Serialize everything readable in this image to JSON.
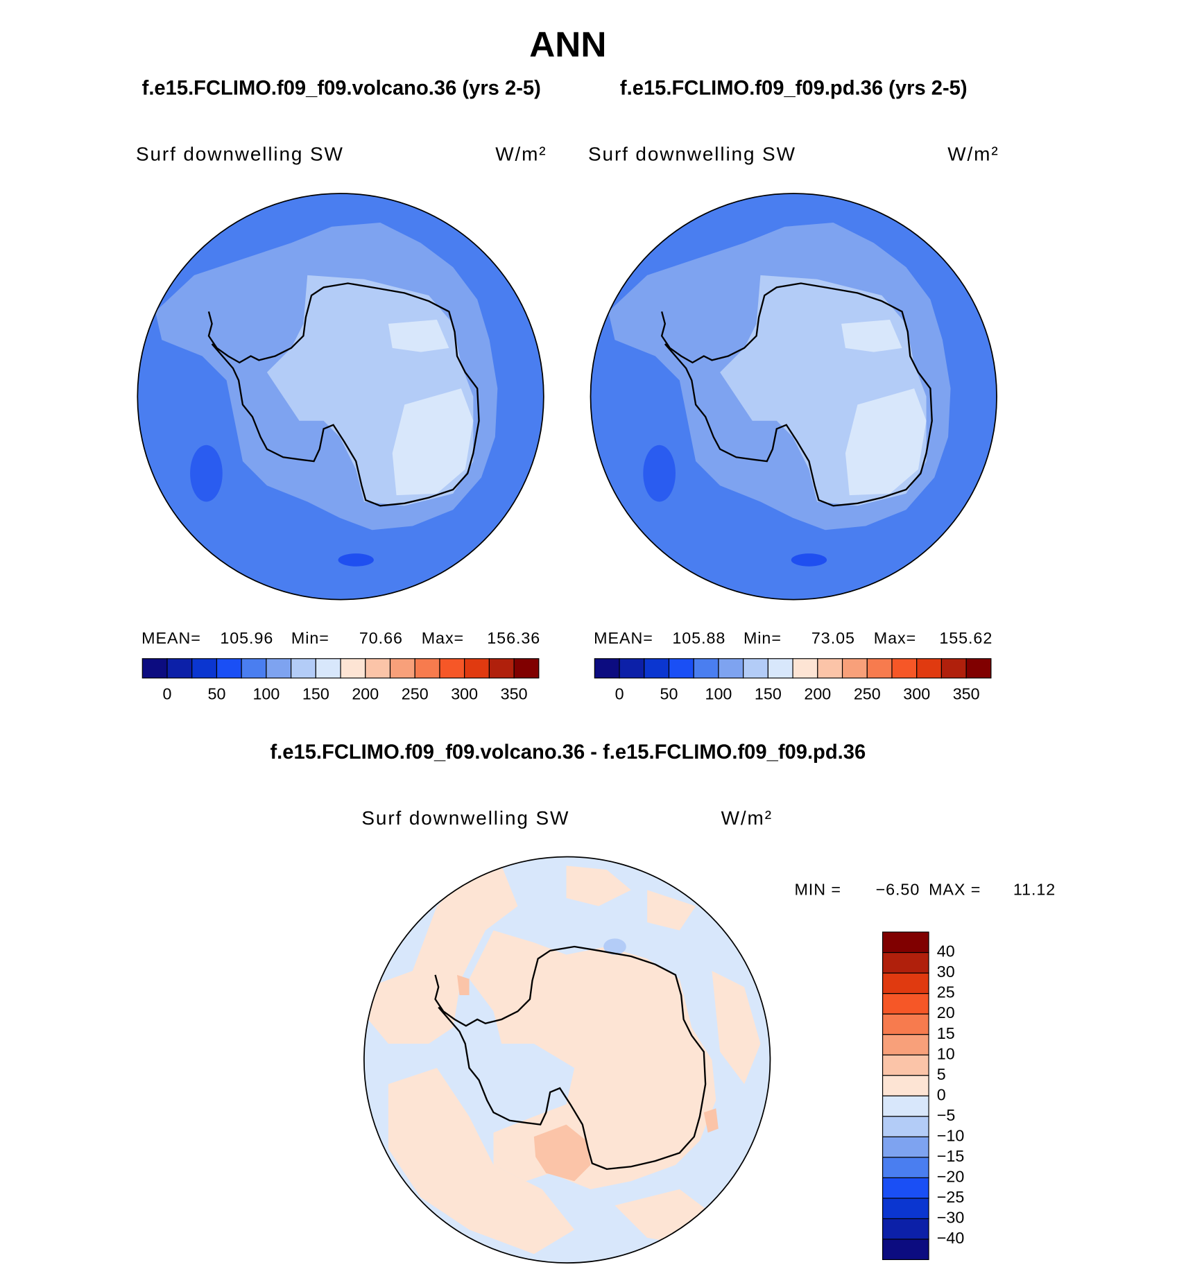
{
  "title": "ANN",
  "panels": [
    {
      "case": "f.e15.FCLIMO.f09_f09.volcano.36 (yrs 2-5)",
      "variable": "Surf downwelling SW",
      "units": "W/m²",
      "stats": [
        {
          "label": "MEAN=",
          "value": 105.96
        },
        {
          "label": "Min=",
          "value": 70.66
        },
        {
          "label": "Max=",
          "value": 156.36
        }
      ]
    },
    {
      "case": "f.e15.FCLIMO.f09_f09.pd.36 (yrs 2-5)",
      "variable": "Surf downwelling SW",
      "units": "W/m²",
      "stats": [
        {
          "label": "MEAN=",
          "value": 105.88
        },
        {
          "label": "Min=",
          "value": 73.05
        },
        {
          "label": "Max=",
          "value": 155.62
        }
      ]
    }
  ],
  "difference": {
    "title": "f.e15.FCLIMO.f09_f09.volcano.36 - f.e15.FCLIMO.f09_f09.pd.36",
    "variable": "Surf downwelling SW",
    "units": "W/m²",
    "stats": [
      {
        "label": "MIN =",
        "value": "−6.50"
      },
      {
        "label": "MAX =",
        "value": 11.12
      }
    ]
  },
  "colorbar_labels": [
    0,
    50,
    100,
    150,
    200,
    250,
    300,
    350
  ],
  "difference_colorbar_labels": [
    40,
    30,
    25,
    20,
    15,
    10,
    5,
    0,
    "−5",
    "−10",
    "−15",
    "−20",
    "−25",
    "−30",
    "−40"
  ],
  "colors": [
    "#0c0c80",
    "#0c20a8",
    "#0b36d0",
    "#1a4ff5",
    "#4a7ef0",
    "#7ea3f0",
    "#b3ccf7",
    "#d8e7fb",
    "#fde4d4",
    "#fbc4a8",
    "#f8a07a",
    "#f77b4e",
    "#f65727",
    "#e03a10",
    "#b0200c",
    "#800000"
  ]
}
